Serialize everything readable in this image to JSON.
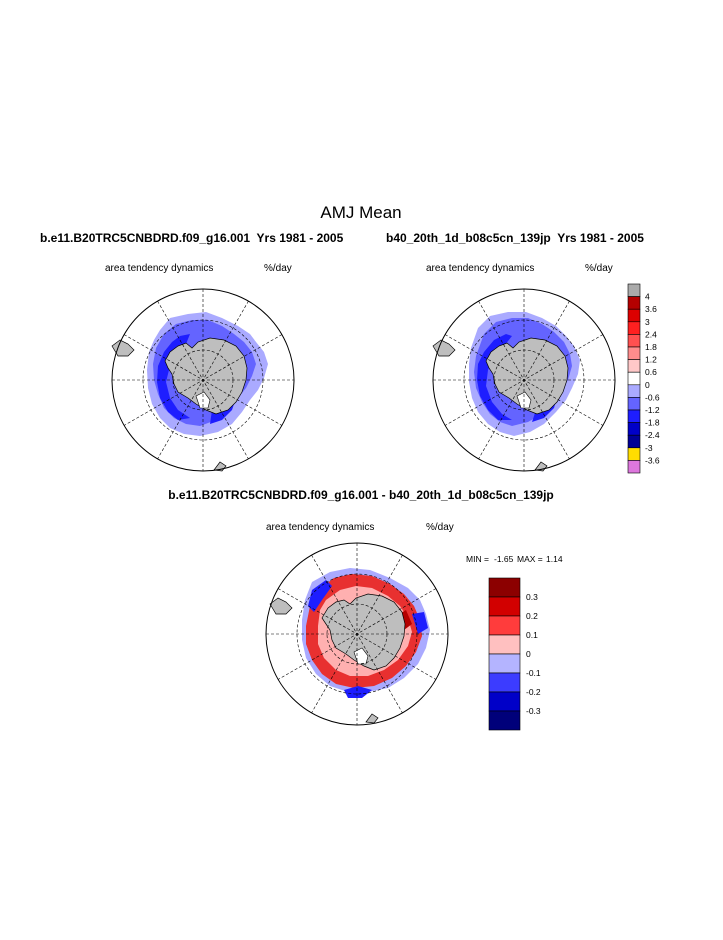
{
  "figure": {
    "title": "AMJ Mean",
    "panel_variable": "area tendency dynamics",
    "panel_units": "%/day"
  },
  "chart_data": [
    {
      "type": "heatmap",
      "projection": "south-polar-stereographic",
      "title": "b.e11.B20TRC5CNBDRD.f09_g16.001  Yrs 1981 - 2005",
      "left_label": "area tendency dynamics",
      "right_label": "%/day",
      "dominant_values": [
        -0.6,
        -1.2
      ],
      "colorbar": {
        "levels": [
          "4",
          "3.6",
          "3",
          "2.4",
          "1.8",
          "1.2",
          "0.6",
          "0",
          "-0.6",
          "-1.2",
          "-1.8",
          "-2.4",
          "-3",
          "-3.6"
        ],
        "colors": [
          "#aaaaaa",
          "#b40000",
          "#dc0000",
          "#ff2020",
          "#ff5050",
          "#ff8c8c",
          "#ffc8c8",
          "#ffffff",
          "#aaaaff",
          "#6464ff",
          "#1e1eff",
          "#0000c8",
          "#000096",
          "#ffdd00",
          "#dd77dd"
        ]
      }
    },
    {
      "type": "heatmap",
      "projection": "south-polar-stereographic",
      "title": "b40_20th_1d_b08c5cn_139jp  Yrs 1981 - 2005",
      "left_label": "area tendency dynamics",
      "right_label": "%/day",
      "dominant_values": [
        -0.6,
        -1.2
      ]
    },
    {
      "type": "heatmap",
      "projection": "south-polar-stereographic",
      "title": "b.e11.B20TRC5CNBDRD.f09_g16.001 - b40_20th_1d_b08c5cn_139jp",
      "left_label": "area tendency dynamics",
      "right_label": "%/day",
      "min_label": "MIN =",
      "min_value": "-1.65",
      "max_label": "MAX =",
      "max_value": "1.14",
      "colorbar": {
        "levels": [
          "0.3",
          "0.2",
          "0.1",
          "0",
          "-0.1",
          "-0.2",
          "-0.3"
        ],
        "colors": [
          "#8c0000",
          "#d20000",
          "#ff3c3c",
          "#ffc0c0",
          "#b4b4ff",
          "#3c3cff",
          "#0000c8",
          "#00007a"
        ]
      }
    }
  ],
  "colors": {
    "land": "#bebebe",
    "ice_light": "#aaaaff",
    "ice_mid": "#6464ff",
    "ice_dark": "#1e1eff",
    "diff_red": "#e83030",
    "diff_lightred": "#ffb0b0"
  }
}
